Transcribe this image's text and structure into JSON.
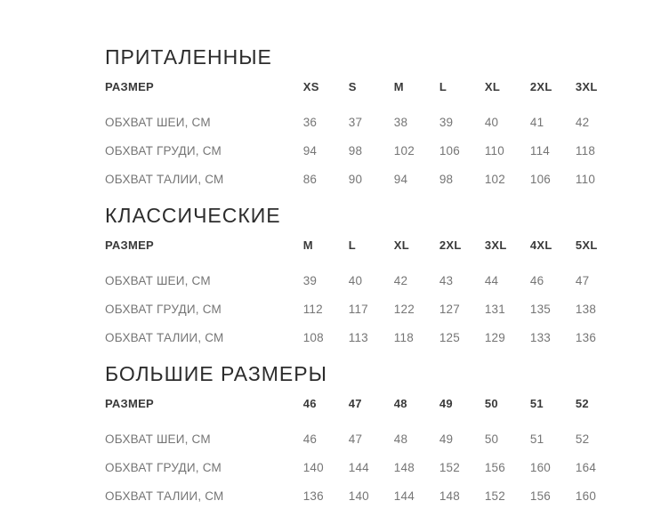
{
  "page": {
    "background_color": "#ffffff",
    "title_color": "#2c2c2c",
    "header_color": "#3a3a3a",
    "value_color": "#757575"
  },
  "tables": [
    {
      "title": "ПРИТАЛЕННЫЕ",
      "header_label": "РАЗМЕР",
      "sizes": [
        "XS",
        "S",
        "M",
        "L",
        "XL",
        "2XL",
        "3XL"
      ],
      "rows": [
        {
          "label": "ОБХВАТ ШЕИ, СМ",
          "values": [
            "36",
            "37",
            "38",
            "39",
            "40",
            "41",
            "42"
          ]
        },
        {
          "label": "ОБХВАТ ГРУДИ, СМ",
          "values": [
            "94",
            "98",
            "102",
            "106",
            "110",
            "114",
            "118"
          ]
        },
        {
          "label": "ОБХВАТ ТАЛИИ, СМ",
          "values": [
            "86",
            "90",
            "94",
            "98",
            "102",
            "106",
            "110"
          ]
        }
      ]
    },
    {
      "title": "КЛАССИЧЕСКИЕ",
      "header_label": "РАЗМЕР",
      "sizes": [
        "M",
        "L",
        "XL",
        "2XL",
        "3XL",
        "4XL",
        "5XL"
      ],
      "rows": [
        {
          "label": "ОБХВАТ ШЕИ, СМ",
          "values": [
            "39",
            "40",
            "42",
            "43",
            "44",
            "46",
            "47"
          ]
        },
        {
          "label": "ОБХВАТ ГРУДИ, СМ",
          "values": [
            "112",
            "117",
            "122",
            "127",
            "131",
            "135",
            "138"
          ]
        },
        {
          "label": "ОБХВАТ ТАЛИИ, СМ",
          "values": [
            "108",
            "113",
            "118",
            "125",
            "129",
            "133",
            "136"
          ]
        }
      ]
    },
    {
      "title": "БОЛЬШИЕ РАЗМЕРЫ",
      "header_label": "РАЗМЕР",
      "sizes": [
        "46",
        "47",
        "48",
        "49",
        "50",
        "51",
        "52"
      ],
      "rows": [
        {
          "label": "ОБХВАТ ШЕИ, СМ",
          "values": [
            "46",
            "47",
            "48",
            "49",
            "50",
            "51",
            "52"
          ]
        },
        {
          "label": "ОБХВАТ ГРУДИ, СМ",
          "values": [
            "140",
            "144",
            "148",
            "152",
            "156",
            "160",
            "164"
          ]
        },
        {
          "label": "ОБХВАТ ТАЛИИ, СМ",
          "values": [
            "136",
            "140",
            "144",
            "148",
            "152",
            "156",
            "160"
          ]
        }
      ]
    }
  ]
}
